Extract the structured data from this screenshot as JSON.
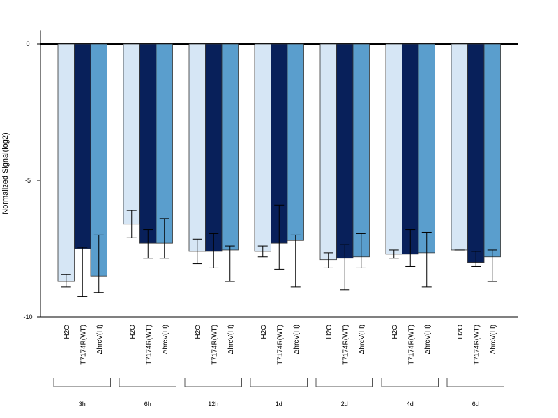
{
  "chart_data": {
    "type": "bar",
    "ylabel": "Normalized Signal(log2)",
    "ylim": [
      -10,
      0.5
    ],
    "yticks": [
      0,
      -5,
      -10
    ],
    "ytick_labels": [
      "0",
      "-5",
      "-10"
    ],
    "grid": false,
    "groups": [
      "3h",
      "6h",
      "12h",
      "1d",
      "2d",
      "4d",
      "6d"
    ],
    "series": [
      {
        "name": "H2O",
        "color": "#d6e6f5",
        "values": [
          -8.7,
          -6.6,
          -7.6,
          -7.6,
          -7.9,
          -7.7,
          -7.55
        ],
        "err_low": [
          -8.9,
          -7.1,
          -8.05,
          -7.8,
          -8.2,
          -7.85,
          -7.55
        ],
        "err_high": [
          -8.45,
          -6.1,
          -7.15,
          -7.4,
          -7.65,
          -7.55,
          -7.55
        ]
      },
      {
        "name": "T7174R(WT)",
        "color": "#08205a",
        "values": [
          -7.5,
          -7.3,
          -7.6,
          -7.3,
          -7.85,
          -7.7,
          -8.0
        ],
        "err_low": [
          -9.25,
          -7.85,
          -8.2,
          -8.25,
          -9.0,
          -8.15,
          -8.15
        ],
        "err_high": [
          -7.45,
          -6.8,
          -6.95,
          -5.9,
          -7.35,
          -6.8,
          -7.6
        ]
      },
      {
        "name": "ΔhrcV(III)",
        "color": "#5a9ecd",
        "values": [
          -8.5,
          -7.3,
          -7.55,
          -7.2,
          -7.8,
          -7.65,
          -7.8
        ],
        "err_low": [
          -9.1,
          -7.85,
          -8.7,
          -8.9,
          -8.2,
          -8.9,
          -8.7
        ],
        "err_high": [
          -7.0,
          -6.4,
          -7.4,
          -7.0,
          -6.95,
          -6.9,
          -7.55
        ]
      }
    ]
  }
}
